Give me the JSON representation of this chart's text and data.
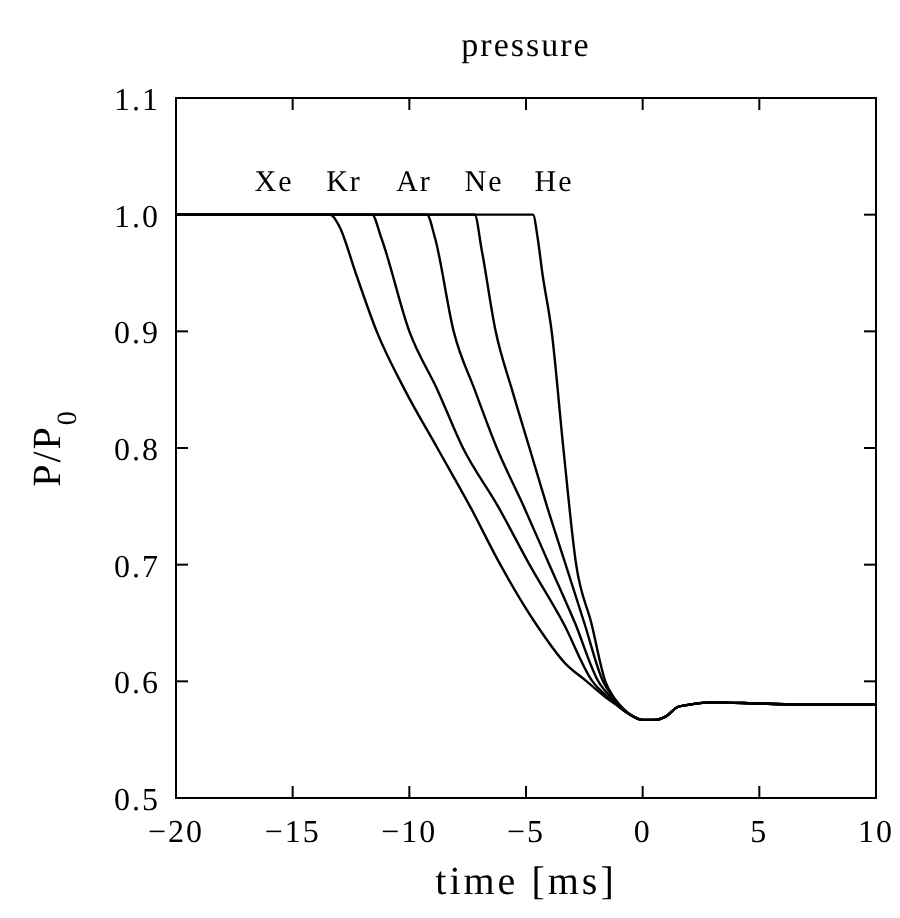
{
  "chart_data": {
    "type": "line",
    "title": "pressure",
    "xlabel": "time [ms]",
    "ylabel": "P/P$_{0}$",
    "xlim": [
      -20,
      10
    ],
    "ylim": [
      0.5,
      1.1
    ],
    "xticks": [
      -20,
      -15,
      -10,
      -5,
      0,
      5,
      10
    ],
    "yticks": [
      {
        "value": 0.5,
        "label": "0.5"
      },
      {
        "value": 0.6,
        "label": "0.6"
      },
      {
        "value": 0.7,
        "label": "0.7"
      },
      {
        "value": 0.8,
        "label": "0.8"
      },
      {
        "value": 0.9,
        "label": "0.9"
      },
      {
        "value": 1.0,
        "label": "1.0"
      },
      {
        "value": 1.1,
        "label": "1.1"
      }
    ],
    "grid": false,
    "marker": "none",
    "line_style": "solid",
    "series": [
      {
        "name": "Xe",
        "color": "#000000",
        "x": [
          -20,
          -13.4,
          -13.0,
          -12.3,
          -11.4,
          -10.2,
          -8.8,
          -7.4,
          -6.1,
          -4.6,
          -3.3,
          -2.4,
          -1.5,
          -1.0,
          -0.5,
          0,
          0.5,
          1,
          1.5,
          2,
          3,
          5,
          7,
          10
        ],
        "values": [
          1.0,
          1.0,
          0.99,
          0.95,
          0.9,
          0.85,
          0.8,
          0.75,
          0.7,
          0.65,
          0.615,
          0.6,
          0.585,
          0.578,
          0.571,
          0.567,
          0.567,
          0.57,
          0.578,
          0.58,
          0.582,
          0.581,
          0.58,
          0.58
        ]
      },
      {
        "name": "Kr",
        "color": "#000000",
        "x": [
          -20,
          -11.6,
          -11.2,
          -10.0,
          -8.8,
          -7.7,
          -6.2,
          -4.85,
          -3.4,
          -2.15,
          -1.4,
          -1.0,
          -0.5,
          0,
          0.5,
          1,
          1.5,
          2,
          3,
          5,
          7,
          10
        ],
        "values": [
          1.0,
          1.0,
          0.98,
          0.9,
          0.85,
          0.8,
          0.75,
          0.7,
          0.65,
          0.6,
          0.585,
          0.578,
          0.571,
          0.567,
          0.567,
          0.57,
          0.578,
          0.58,
          0.582,
          0.581,
          0.58,
          0.58
        ]
      },
      {
        "name": "Ar",
        "color": "#000000",
        "x": [
          -20,
          -9.25,
          -8.9,
          -8.1,
          -7.2,
          -6.25,
          -5.1,
          -4.0,
          -2.9,
          -1.9,
          -1.3,
          -1.0,
          -0.5,
          0,
          0.5,
          1,
          1.5,
          2,
          3,
          5,
          7,
          10
        ],
        "values": [
          1.0,
          1.0,
          0.98,
          0.9,
          0.85,
          0.8,
          0.75,
          0.7,
          0.65,
          0.6,
          0.585,
          0.578,
          0.571,
          0.567,
          0.567,
          0.57,
          0.578,
          0.58,
          0.582,
          0.581,
          0.58,
          0.58
        ]
      },
      {
        "name": "Ne",
        "color": "#000000",
        "x": [
          -20,
          -7.2,
          -6.9,
          -6.3,
          -5.6,
          -4.85,
          -4.1,
          -3.3,
          -2.5,
          -1.7,
          -1.2,
          -0.5,
          0,
          0.5,
          1,
          1.5,
          2,
          3,
          5,
          7,
          10
        ],
        "values": [
          1.0,
          1.0,
          0.97,
          0.9,
          0.85,
          0.8,
          0.75,
          0.7,
          0.65,
          0.6,
          0.585,
          0.571,
          0.567,
          0.567,
          0.57,
          0.578,
          0.58,
          0.582,
          0.581,
          0.58,
          0.58
        ]
      },
      {
        "name": "He",
        "color": "#000000",
        "x": [
          -20,
          -4.7,
          -4.5,
          -4.3,
          -3.9,
          -3.4,
          -2.85,
          -2.2,
          -1.6,
          -1.2,
          -0.5,
          0,
          0.5,
          1,
          1.5,
          2,
          3,
          5,
          7,
          10
        ],
        "values": [
          1.0,
          1.0,
          0.98,
          0.95,
          0.9,
          0.8,
          0.7,
          0.65,
          0.6,
          0.585,
          0.571,
          0.567,
          0.567,
          0.57,
          0.578,
          0.58,
          0.582,
          0.581,
          0.58,
          0.58
        ]
      }
    ]
  }
}
